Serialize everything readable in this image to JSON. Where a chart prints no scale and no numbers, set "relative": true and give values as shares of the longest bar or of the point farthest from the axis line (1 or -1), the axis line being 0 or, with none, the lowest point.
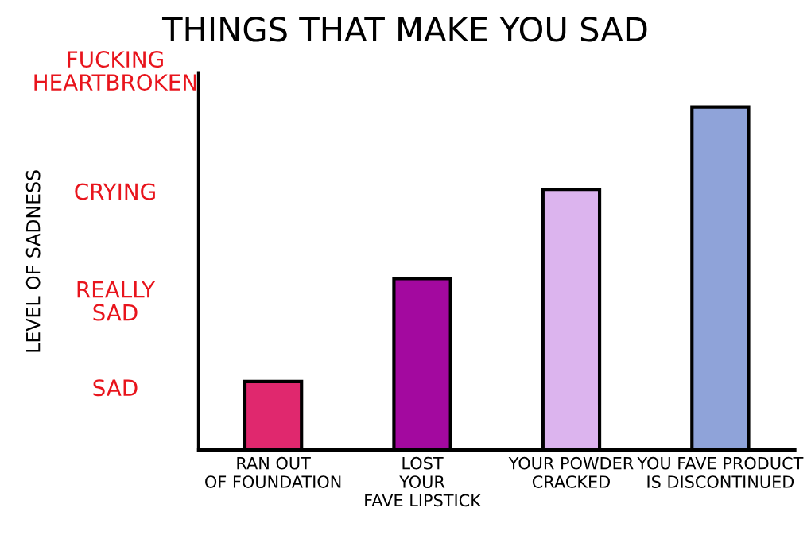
{
  "chart_data": {
    "type": "bar",
    "title": "THINGS THAT MAKE YOU SAD",
    "categories": [
      "RAN OUT\nOF FOUNDATION",
      "LOST\nYOUR\nFAVE LIPSTICK",
      "YOUR POWDER\nCRACKED",
      "YOU FAVE PRODUCT\nIS DISCONTINUED"
    ],
    "values": [
      0.2,
      0.5,
      0.76,
      1
    ],
    "colors": [
      "#e0286e",
      "#a3099f",
      "#dcb4ee",
      "#8fa3d9"
    ],
    "relative": true,
    "annotations": [
      "SAD",
      "REALLY\nSAD",
      "CRYING",
      "FUCKING\nHEARTBROKEN",
      "LEVEL OF SADNESS"
    ]
  }
}
